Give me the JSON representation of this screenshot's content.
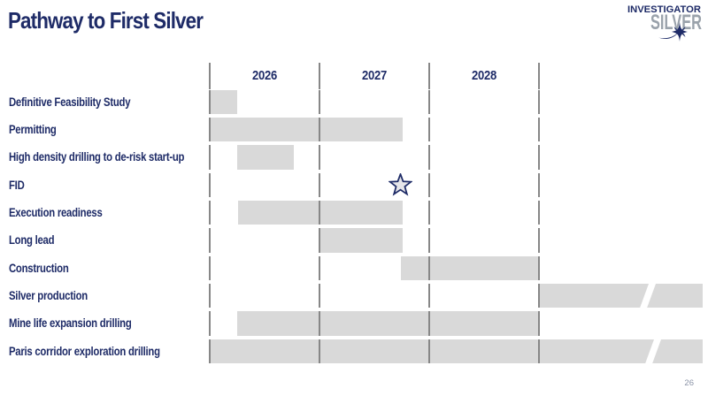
{
  "title": "Pathway to First Silver",
  "page_number": "26",
  "logo": {
    "line1": "INVESTIGATOR",
    "line2": "SILVER"
  },
  "colors": {
    "navy": "#1e2b67",
    "bar_gray": "#d9d9d9",
    "gridline": "#878787",
    "silver_gray": "#9aa2ab"
  },
  "chart_data": {
    "type": "gantt",
    "title": "Pathway to First Silver",
    "x_axis": {
      "unit": "year",
      "range_start": 2026,
      "range_end": 2029,
      "ticks": [
        "2026",
        "2027",
        "2028"
      ],
      "gridlines": [
        2026,
        2027,
        2028,
        2029
      ]
    },
    "bar_color": "#d9d9d9",
    "milestone_marker": "star",
    "tasks": [
      {
        "label": "Definitive Feasibility Study",
        "start": 2026.0,
        "end": 2026.25
      },
      {
        "label": "Permitting",
        "start": 2026.0,
        "end": 2027.76
      },
      {
        "label": "High density drilling to de-risk start-up",
        "start": 2026.25,
        "end": 2026.77
      },
      {
        "label": "FID",
        "milestone": 2027.74
      },
      {
        "label": "Execution readiness",
        "start": 2026.26,
        "end": 2027.76
      },
      {
        "label": "Long lead",
        "start": 2027.0,
        "end": 2027.76
      },
      {
        "label": "Construction",
        "start": 2027.74,
        "end": 2029.0
      },
      {
        "label": "Silver production",
        "start": 2029.0,
        "end": 2030.49,
        "continues": true,
        "break_at": 2029.99
      },
      {
        "label": "Mine life expansion drilling",
        "start": 2026.25,
        "end": 2029.0
      },
      {
        "label": "Paris corridor exploration drilling",
        "start": 2026.0,
        "end": 2030.49,
        "continues": true,
        "break_at": 2030.04
      }
    ]
  }
}
